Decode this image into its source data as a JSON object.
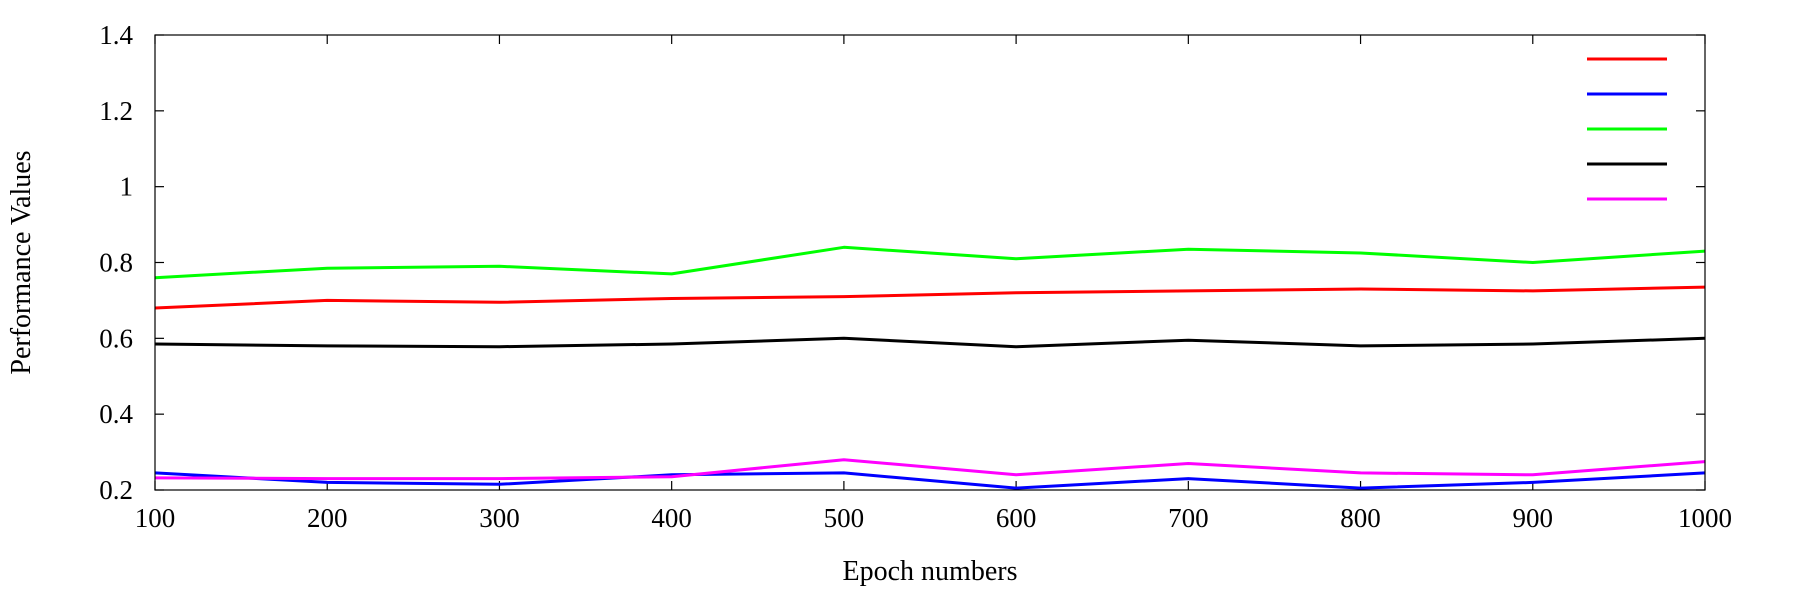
{
  "chart_data": {
    "type": "line",
    "title": "",
    "xlabel": "Epoch numbers",
    "ylabel": "Performance Values",
    "x": [
      100,
      200,
      300,
      400,
      500,
      600,
      700,
      800,
      900,
      1000
    ],
    "xlim": [
      100,
      1000
    ],
    "ylim": [
      0.2,
      1.4
    ],
    "xticks": [
      "100",
      "200",
      "300",
      "400",
      "500",
      "600",
      "700",
      "800",
      "900",
      "1000"
    ],
    "yticks": [
      "0.2",
      "0.4",
      "0.6",
      "0.8",
      "1",
      "1.2",
      "1.4"
    ],
    "grid": false,
    "legend_position": "top-right",
    "series": [
      {
        "color": "#ff0000",
        "values": [
          0.68,
          0.7,
          0.695,
          0.705,
          0.71,
          0.72,
          0.725,
          0.73,
          0.725,
          0.735
        ]
      },
      {
        "color": "#0000ff",
        "values": [
          0.245,
          0.22,
          0.215,
          0.24,
          0.245,
          0.205,
          0.23,
          0.205,
          0.22,
          0.245
        ]
      },
      {
        "color": "#00ff00",
        "values": [
          0.76,
          0.785,
          0.79,
          0.77,
          0.84,
          0.81,
          0.835,
          0.825,
          0.8,
          0.83
        ]
      },
      {
        "color": "#000000",
        "values": [
          0.585,
          0.58,
          0.578,
          0.585,
          0.6,
          0.578,
          0.595,
          0.58,
          0.585,
          0.6
        ]
      },
      {
        "color": "#ff00ff",
        "values": [
          0.232,
          0.23,
          0.23,
          0.235,
          0.28,
          0.24,
          0.27,
          0.245,
          0.24,
          0.275
        ]
      }
    ]
  }
}
